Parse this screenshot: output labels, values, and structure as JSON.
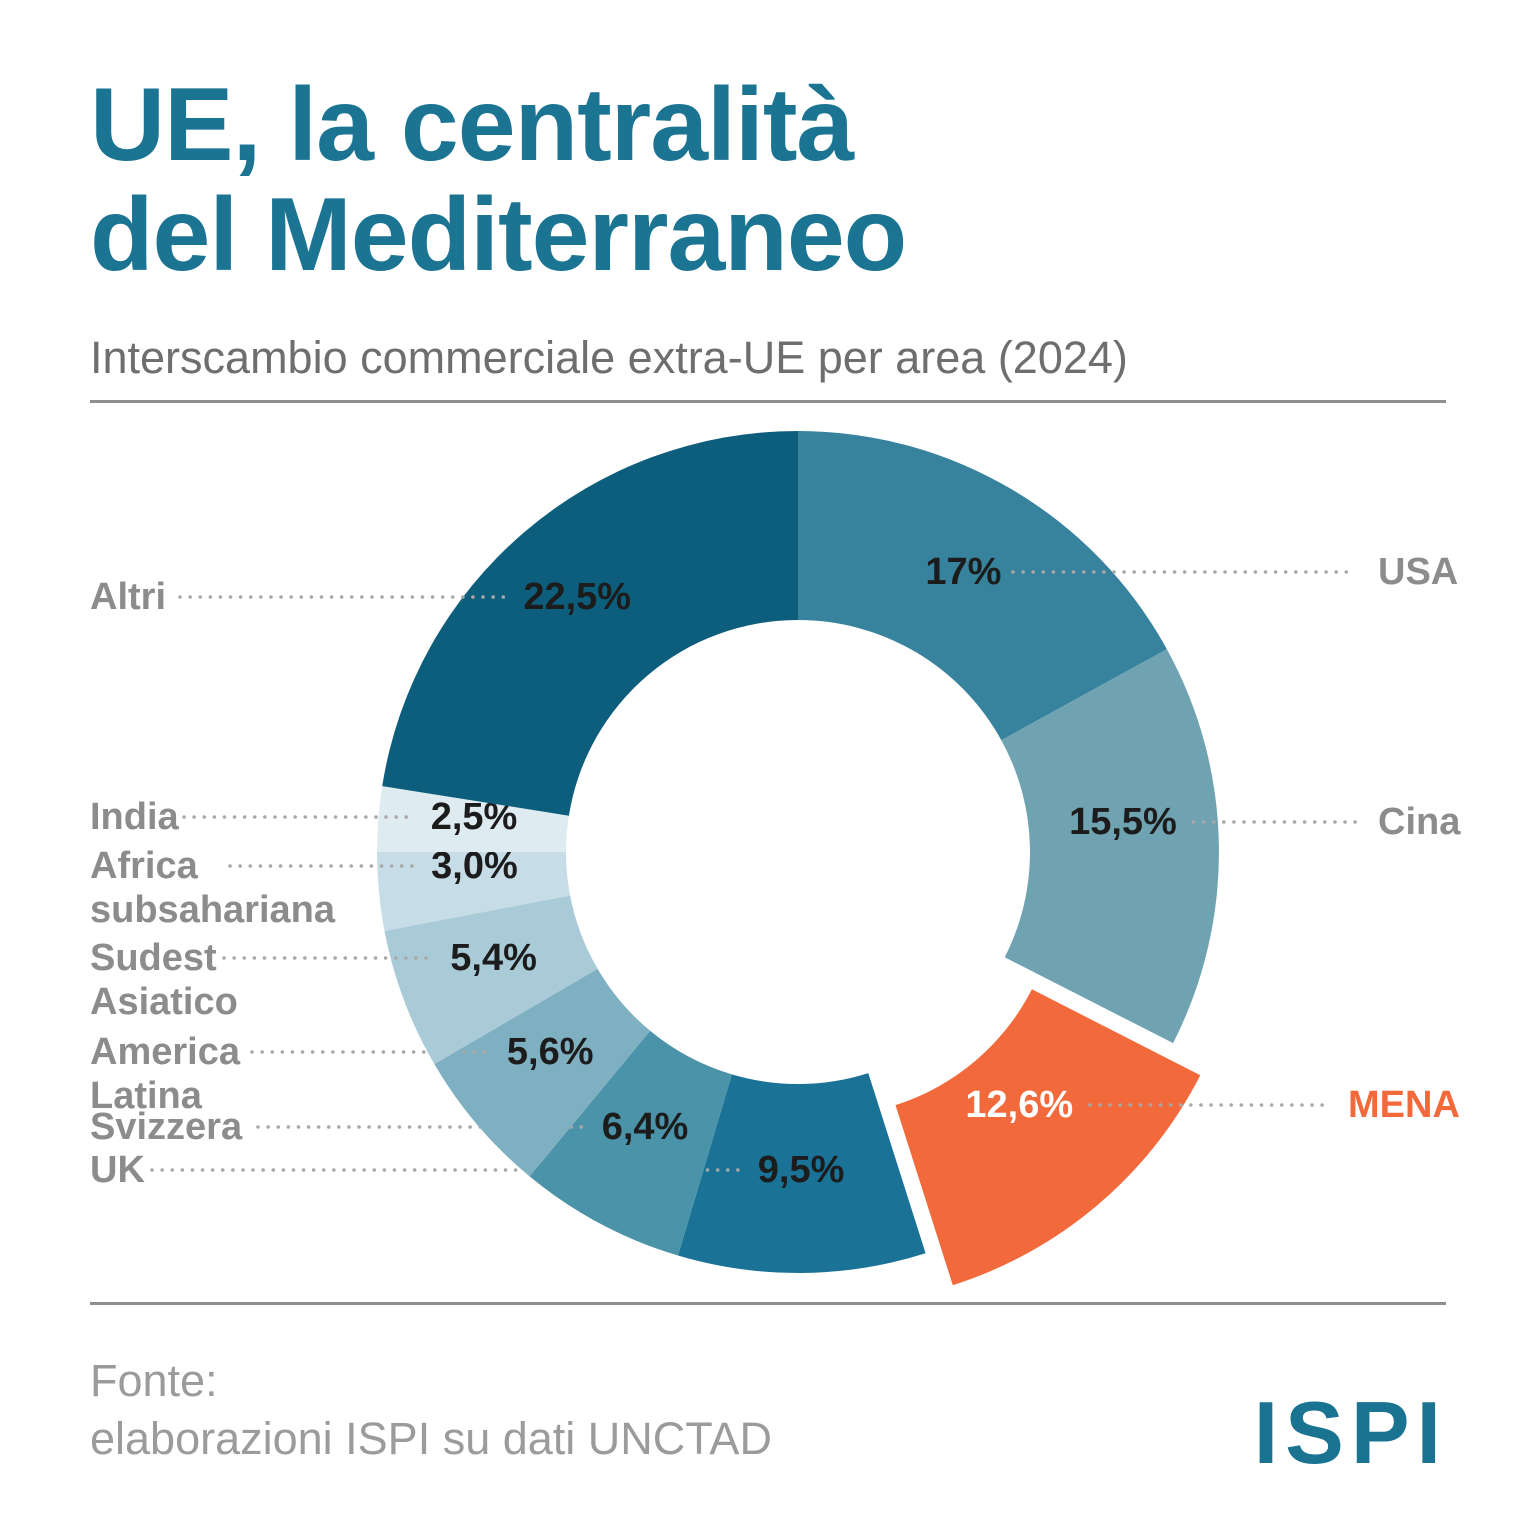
{
  "header": {
    "title_line1": "UE, la centralità",
    "title_line2": "del Mediterraneo",
    "subtitle": "Interscambio commerciale extra-UE per area (2024)"
  },
  "footer": {
    "source_label": "Fonte:",
    "source_text": "elaborazioni ISPI su dati UNCTAD",
    "logo_text": "ISPI"
  },
  "colors": {
    "title_teal": "#1B7492",
    "label_gray": "#8C8C8C",
    "accent_orange": "#F26A3B",
    "leader_dots": "#A8A8A8",
    "percent_text": "#1C1C1C",
    "altri_dark": "#0D5E7C"
  },
  "chart_data": {
    "type": "pie",
    "subtype": "donut",
    "title": "Interscambio commerciale extra-UE per area (2024)",
    "units": "%",
    "start_angle_deg": 0,
    "direction": "clockwise",
    "total": 100,
    "segments": [
      {
        "label": "USA",
        "value": 17,
        "value_label": "17%",
        "color": "#37839E",
        "side": "right",
        "exploded": false
      },
      {
        "label": "Cina",
        "value": 15.5,
        "value_label": "15,5%",
        "color": "#6FA3B2",
        "side": "right",
        "exploded": false
      },
      {
        "label": "MENA",
        "value": 12.6,
        "value_label": "12,6%",
        "color": "#F26A3B",
        "side": "right",
        "exploded": true,
        "highlighted": true
      },
      {
        "label": "UK",
        "value": 9.5,
        "value_label": "9,5%",
        "color": "#1A7397",
        "side": "left",
        "exploded": false
      },
      {
        "label": "Svizzera",
        "value": 6.4,
        "value_label": "6,4%",
        "color": "#4A93A8",
        "side": "left",
        "exploded": false
      },
      {
        "label": "America Latina",
        "value": 5.6,
        "value_label": "5,6%",
        "color": "#7FB0C1",
        "side": "left",
        "exploded": false
      },
      {
        "label": "Sudest Asiatico",
        "value": 5.4,
        "value_label": "5,4%",
        "color": "#A9CBD8",
        "side": "left",
        "exploded": false
      },
      {
        "label": "Africa subsahariana",
        "value": 3.0,
        "value_label": "3,0%",
        "color": "#C6DCE6",
        "side": "left",
        "exploded": false
      },
      {
        "label": "India",
        "value": 2.5,
        "value_label": "2,5%",
        "color": "#DEEBF1",
        "side": "left",
        "exploded": false
      },
      {
        "label": "Altri",
        "value": 22.5,
        "value_label": "22,5%",
        "color": "#0D5E7C",
        "side": "left",
        "exploded": false
      }
    ]
  }
}
